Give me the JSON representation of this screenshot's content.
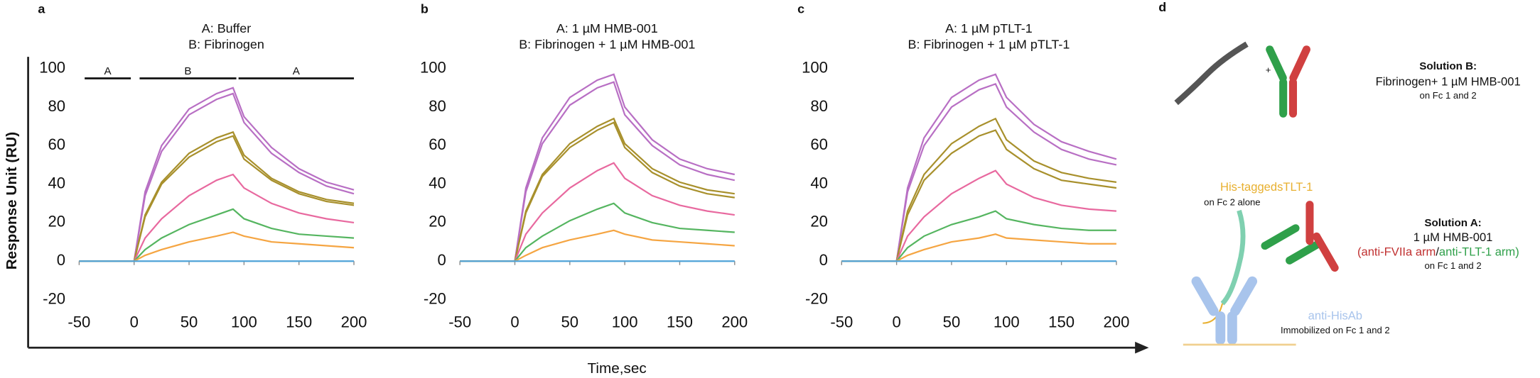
{
  "axes": {
    "ylabel": "Response Unit (RU)",
    "xlabel": "Time,sec"
  },
  "chart_data": [
    {
      "type": "line",
      "panel": "a",
      "title": [
        "A: Buffer",
        "B: Fibrinogen"
      ],
      "phases": [
        {
          "label": "A",
          "x": [
            -45,
            -3
          ]
        },
        {
          "label": "B",
          "x": [
            5,
            93
          ]
        },
        {
          "label": "A",
          "x": [
            95,
            200
          ]
        }
      ],
      "x": [
        -50,
        -10,
        0,
        10,
        25,
        50,
        75,
        90,
        100,
        125,
        150,
        175,
        200
      ],
      "xlim": [
        -50,
        200
      ],
      "xticks": [
        -50,
        0,
        50,
        100,
        150,
        200
      ],
      "ylim": [
        -20,
        100
      ],
      "yticks": [
        -20,
        0,
        20,
        40,
        60,
        80,
        100
      ],
      "series": [
        {
          "color": "#b86fc4",
          "values": [
            0,
            0,
            0,
            36,
            60,
            79,
            87,
            90,
            75,
            59,
            48,
            41,
            37
          ]
        },
        {
          "color": "#b86fc4",
          "values": [
            0,
            0,
            0,
            34,
            57,
            76,
            84,
            87,
            72,
            56,
            46,
            39,
            35
          ]
        },
        {
          "color": "#a8902c",
          "values": [
            0,
            0,
            0,
            24,
            41,
            56,
            64,
            67,
            55,
            43,
            36,
            32,
            30
          ]
        },
        {
          "color": "#a8902c",
          "values": [
            0,
            0,
            0,
            23,
            40,
            54,
            62,
            65,
            53,
            42,
            35,
            31,
            29
          ]
        },
        {
          "color": "#e8699f",
          "values": [
            0,
            0,
            0,
            12,
            22,
            34,
            42,
            45,
            38,
            30,
            25,
            22,
            20
          ]
        },
        {
          "color": "#55b560",
          "values": [
            0,
            0,
            0,
            6,
            12,
            19,
            24,
            27,
            22,
            17,
            14,
            13,
            12
          ]
        },
        {
          "color": "#f5a542",
          "values": [
            0,
            0,
            0,
            3,
            6,
            10,
            13,
            15,
            13,
            10,
            9,
            8,
            7
          ]
        },
        {
          "color": "#4fa3d8",
          "values": [
            0,
            0,
            0,
            0,
            0,
            0,
            0,
            0,
            0,
            0,
            0,
            0,
            0
          ]
        }
      ]
    },
    {
      "type": "line",
      "panel": "b",
      "title": [
        "A: 1 µM  HMB-001",
        "B: Fibrinogen + 1 µM HMB-001"
      ],
      "x": [
        -50,
        -10,
        0,
        10,
        25,
        50,
        75,
        90,
        100,
        125,
        150,
        175,
        200
      ],
      "xlim": [
        -50,
        200
      ],
      "xticks": [
        -50,
        0,
        50,
        100,
        150,
        200
      ],
      "ylim": [
        -20,
        100
      ],
      "yticks": [
        -20,
        0,
        20,
        40,
        60,
        80,
        100
      ],
      "series": [
        {
          "color": "#b86fc4",
          "values": [
            0,
            0,
            0,
            38,
            64,
            85,
            94,
            97,
            80,
            63,
            53,
            48,
            45
          ]
        },
        {
          "color": "#b86fc4",
          "values": [
            0,
            0,
            0,
            36,
            61,
            81,
            90,
            93,
            76,
            60,
            50,
            45,
            42
          ]
        },
        {
          "color": "#a8902c",
          "values": [
            0,
            0,
            0,
            26,
            45,
            61,
            70,
            74,
            61,
            48,
            41,
            37,
            35
          ]
        },
        {
          "color": "#a8902c",
          "values": [
            0,
            0,
            0,
            25,
            44,
            59,
            68,
            72,
            59,
            46,
            39,
            35,
            33
          ]
        },
        {
          "color": "#e8699f",
          "values": [
            0,
            0,
            0,
            14,
            25,
            38,
            47,
            51,
            43,
            34,
            29,
            26,
            24
          ]
        },
        {
          "color": "#55b560",
          "values": [
            0,
            0,
            0,
            7,
            13,
            21,
            27,
            30,
            25,
            20,
            17,
            16,
            15
          ]
        },
        {
          "color": "#f5a542",
          "values": [
            0,
            0,
            0,
            3,
            7,
            11,
            14,
            16,
            14,
            11,
            10,
            9,
            8
          ]
        },
        {
          "color": "#4fa3d8",
          "values": [
            0,
            0,
            0,
            0,
            0,
            0,
            0,
            0,
            0,
            0,
            0,
            0,
            0
          ]
        }
      ]
    },
    {
      "type": "line",
      "panel": "c",
      "title": [
        "A: 1 µM  pTLT-1",
        "B: Fibrinogen + 1 µM pTLT-1"
      ],
      "x": [
        -50,
        -10,
        0,
        10,
        25,
        50,
        75,
        90,
        100,
        125,
        150,
        175,
        200
      ],
      "xlim": [
        -50,
        200
      ],
      "xticks": [
        -50,
        0,
        50,
        100,
        150,
        200
      ],
      "ylim": [
        -20,
        100
      ],
      "yticks": [
        -20,
        0,
        20,
        40,
        60,
        80,
        100
      ],
      "series": [
        {
          "color": "#b86fc4",
          "values": [
            0,
            0,
            0,
            38,
            64,
            85,
            94,
            97,
            85,
            71,
            62,
            57,
            53
          ]
        },
        {
          "color": "#b86fc4",
          "values": [
            0,
            0,
            0,
            36,
            60,
            80,
            89,
            92,
            80,
            67,
            58,
            53,
            50
          ]
        },
        {
          "color": "#a8902c",
          "values": [
            0,
            0,
            0,
            26,
            45,
            61,
            70,
            74,
            63,
            52,
            46,
            43,
            41
          ]
        },
        {
          "color": "#a8902c",
          "values": [
            0,
            0,
            0,
            24,
            42,
            56,
            65,
            68,
            58,
            48,
            42,
            40,
            38
          ]
        },
        {
          "color": "#e8699f",
          "values": [
            0,
            0,
            0,
            13,
            23,
            35,
            43,
            47,
            40,
            33,
            29,
            27,
            26
          ]
        },
        {
          "color": "#55b560",
          "values": [
            0,
            0,
            0,
            7,
            13,
            19,
            23,
            26,
            22,
            19,
            17,
            16,
            16
          ]
        },
        {
          "color": "#f5a542",
          "values": [
            0,
            0,
            0,
            3,
            6,
            10,
            12,
            14,
            12,
            11,
            10,
            9,
            9
          ]
        },
        {
          "color": "#4fa3d8",
          "values": [
            0,
            0,
            0,
            0,
            0,
            0,
            0,
            0,
            0,
            0,
            0,
            0,
            0
          ]
        }
      ]
    }
  ],
  "diagram": {
    "panel": "d",
    "plus": "+",
    "solution_b": [
      "Solution B:",
      "Fibrinogen+ 1 µM HMB-001",
      "on Fc 1 and 2"
    ],
    "sTLT": [
      "His-tagged",
      "sTLT-1",
      "on Fc 2 alone"
    ],
    "solution_a": [
      "Solution A:",
      "1 µM HMB-001",
      "(anti-FVIIa arm",
      "/",
      "anti-TLT-1 arm)",
      "on Fc 1 and 2"
    ],
    "antihis": [
      "anti-HisAb",
      "Immobilized on Fc 1 and 2"
    ]
  }
}
